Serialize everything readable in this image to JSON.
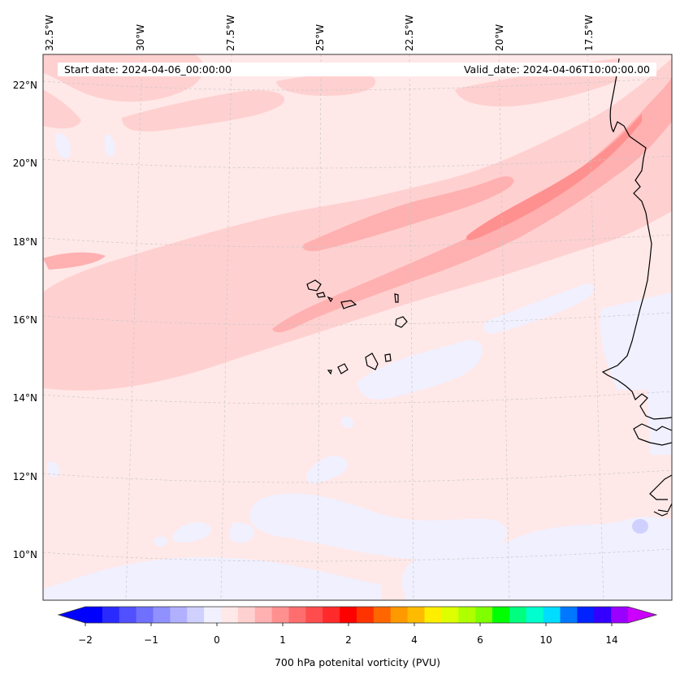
{
  "map": {
    "start_date_label": "Start date: 2024-04-06_00:00:00",
    "valid_date_label": "Valid_date: 2024-04-06T10:00:00.00",
    "longitude_labels": [
      "32.5°W",
      "30°W",
      "27.5°W",
      "25°W",
      "22.5°W",
      "20°W",
      "17.5°W"
    ],
    "latitude_labels": [
      "22°N",
      "20°N",
      "18°N",
      "16°N",
      "14°N",
      "12°N",
      "10°N"
    ],
    "field": "700 hPa potential vorticity",
    "region": "Cape Verde Islands and West African coast"
  },
  "colorbar": {
    "label": "700 hPa potenital vorticity (PVU)",
    "tick_labels": [
      "−2",
      "−1",
      "0",
      "1",
      "2",
      "4",
      "6",
      "10",
      "14"
    ],
    "colors": [
      "#0000ff",
      "#2a2aff",
      "#5050ff",
      "#7070ff",
      "#9090ff",
      "#b0b0ff",
      "#d0d0ff",
      "#f0f0ff",
      "#ffe8e8",
      "#ffd0d0",
      "#ffb0b0",
      "#ff9090",
      "#ff6e6e",
      "#ff4c4c",
      "#ff2a2a",
      "#ff0000",
      "#ff3300",
      "#ff6600",
      "#ff9900",
      "#ffbb00",
      "#ffee00",
      "#ddff00",
      "#b0ff00",
      "#7fff00",
      "#00ff00",
      "#00ff7f",
      "#00ffcc",
      "#00ddff",
      "#0077ff",
      "#0022ff",
      "#3300ff",
      "#9900ff"
    ],
    "under_color": "#0000ff",
    "over_color": "#cc00ff"
  }
}
